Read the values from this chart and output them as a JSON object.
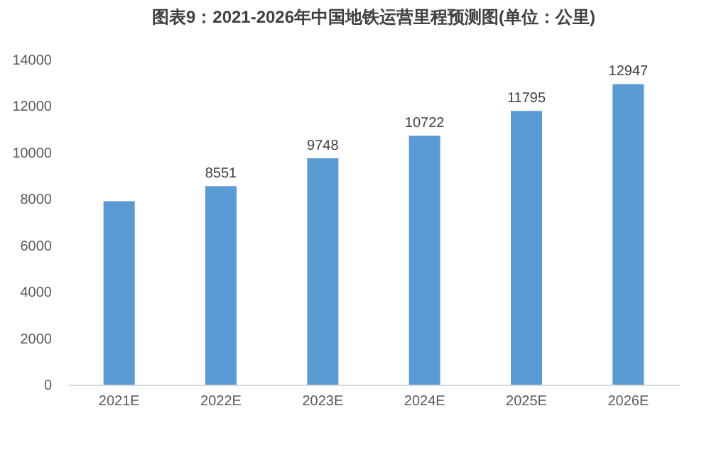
{
  "chart_data": {
    "type": "bar",
    "title": "图表9：2021-2026年中国地铁运营里程预测图(单位：公里)",
    "categories": [
      "2021E",
      "2022E",
      "2023E",
      "2024E",
      "2025E",
      "2026E"
    ],
    "values": [
      7900,
      8551,
      9748,
      10722,
      11795,
      12947
    ],
    "value_labels": [
      null,
      "8551",
      "9748",
      "10722",
      "11795",
      "12947"
    ],
    "color": "#5b9bd5",
    "ylim": [
      0,
      14000
    ],
    "yticks": [
      0,
      2000,
      4000,
      6000,
      8000,
      10000,
      12000,
      14000
    ],
    "grid": false
  }
}
